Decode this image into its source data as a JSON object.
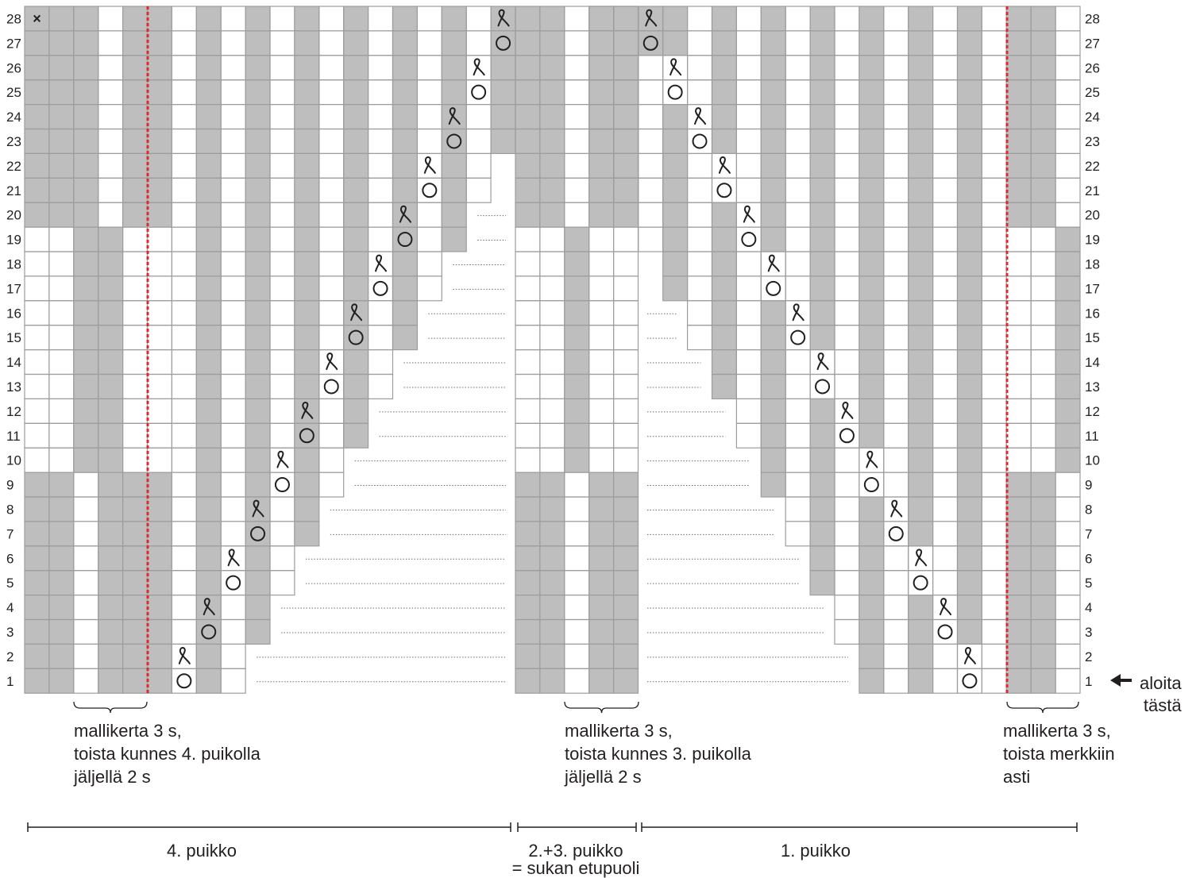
{
  "chart_data": {
    "type": "knitting-chart",
    "rows": 28,
    "row_numbers": [
      "1",
      "2",
      "3",
      "4",
      "5",
      "6",
      "7",
      "8",
      "9",
      "10",
      "11",
      "12",
      "13",
      "14",
      "15",
      "16",
      "17",
      "18",
      "19",
      "20",
      "21",
      "22",
      "23",
      "24",
      "25",
      "26",
      "27",
      "28"
    ],
    "symbols": {
      "yarn_over": "○",
      "twisted_stitch": "ƛ",
      "no_stitch": "×"
    },
    "colors": {
      "purl_shade": "#bebebe",
      "grid_line": "#9d9d9d",
      "marker": "#e0282f",
      "ink": "#231f20",
      "background": "#ffffff"
    }
  },
  "captions": {
    "left": "mallikerta 3 s,\ntoista kunnes 4. puikolla\njäljellä 2 s",
    "middle": "mallikerta 3 s,\ntoista kunnes 3. puikolla\njäljellä 2 s",
    "right": "mallikerta 3 s,\ntoista merkkiin\nasti"
  },
  "segments": {
    "needle4": "4. puikko",
    "needle23": "2.+3. puikko\n= sukan etupuoli",
    "needle1": "1. puikko"
  },
  "start": {
    "label": "aloita\ntästä",
    "arrow_icon": "arrow-left-icon"
  }
}
